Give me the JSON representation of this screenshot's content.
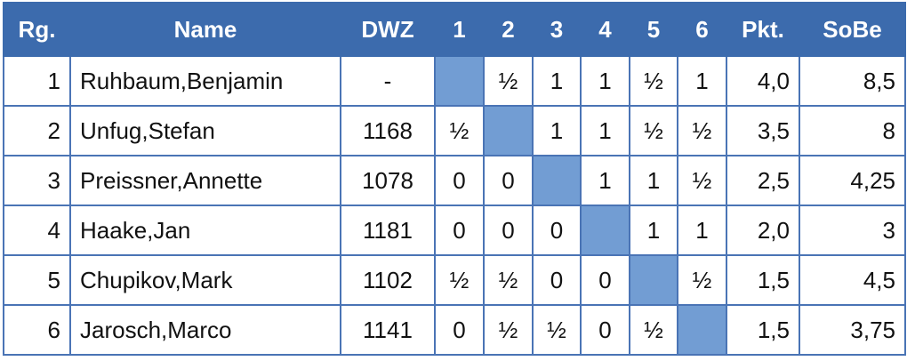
{
  "table": {
    "header": [
      "Rg.",
      "Name",
      "DWZ",
      "1",
      "2",
      "3",
      "4",
      "5",
      "6",
      "Pkt.",
      "SoBe"
    ],
    "rows": [
      [
        "1",
        "Ruhbaum,Benjamin",
        "-",
        null,
        "½",
        "1",
        "1",
        "½",
        "1",
        "4,0",
        "8,5"
      ],
      [
        "2",
        "Unfug,Stefan",
        "1168",
        "½",
        null,
        "1",
        "1",
        "½",
        "½",
        "3,5",
        "8"
      ],
      [
        "3",
        "Preissner,Annette",
        "1078",
        "0",
        "0",
        null,
        "1",
        "1",
        "½",
        "2,5",
        "4,25"
      ],
      [
        "4",
        "Haake,Jan",
        "1181",
        "0",
        "0",
        "0",
        null,
        "1",
        "1",
        "2,0",
        "3"
      ],
      [
        "5",
        "Chupikov,Mark",
        "1102",
        "½",
        "½",
        "0",
        "0",
        null,
        "½",
        "1,5",
        "4,5"
      ],
      [
        "6",
        "Jarosch,Marco",
        "1141",
        "0",
        "½",
        "½",
        "0",
        "½",
        null,
        "1,5",
        "3,75"
      ]
    ]
  }
}
